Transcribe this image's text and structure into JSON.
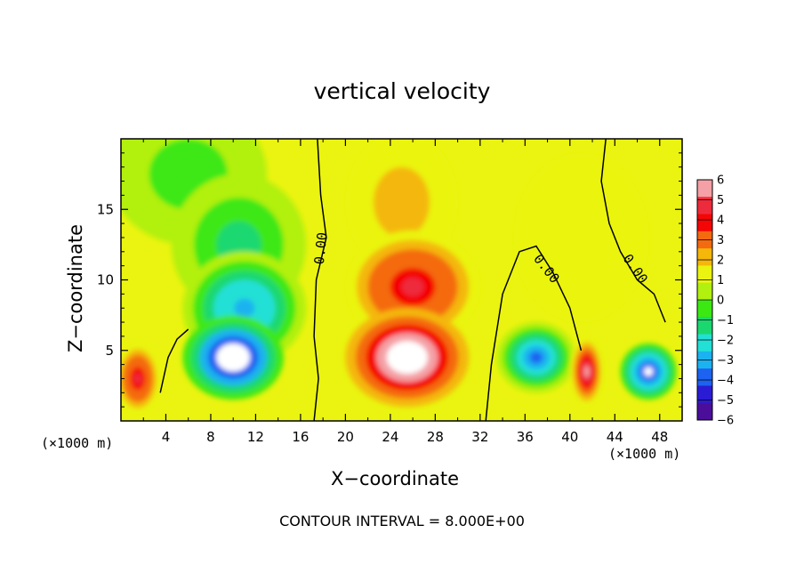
{
  "chart_data": {
    "type": "heatmap",
    "title": "vertical velocity",
    "xlabel": "X−coordinate",
    "ylabel": "Z−coordinate",
    "x_unit_label": "(×1000 m)",
    "xlim": [
      0,
      50
    ],
    "ylim": [
      0,
      20
    ],
    "x_ticks": [
      4,
      8,
      12,
      16,
      20,
      24,
      28,
      32,
      36,
      40,
      44,
      48
    ],
    "y_ticks": [
      5,
      10,
      15
    ],
    "colorbar": {
      "levels": [
        6,
        5,
        4,
        3,
        2,
        1,
        0,
        -1,
        -2,
        -3,
        -4,
        -5,
        -6
      ],
      "level_labels": [
        "6",
        "5",
        "4",
        "3",
        "2",
        "1",
        "0",
        "−1",
        "−2",
        "−3",
        "−4",
        "−5",
        "−6"
      ],
      "colors": [
        "#f4a0a6",
        "#ee2b3c",
        "#f40606",
        "#f46a10",
        "#f4b70a",
        "#eaf410",
        "#b2f010",
        "#3ce812",
        "#1ad86f",
        "#22e0d6",
        "#1bb2f0",
        "#1d62f0",
        "#2a1cd4",
        "#4b0e9a"
      ]
    },
    "contour_labels": [
      {
        "text": "0.00",
        "x": 18.2,
        "z": 12.2,
        "angle": -84
      },
      {
        "text": "0.00",
        "x": 37.6,
        "z": 10.6,
        "angle": 52
      },
      {
        "text": "0.00",
        "x": 45.5,
        "z": 10.6,
        "angle": 55
      }
    ],
    "regions": [
      {
        "x": 6.0,
        "z": 17.5,
        "rx": 7,
        "rz": 5,
        "w": -1.5
      },
      {
        "x": 10.5,
        "z": 12.5,
        "rx": 6,
        "rz": 5,
        "w": -2.5
      },
      {
        "x": 11.0,
        "z": 8.0,
        "rx": 5.5,
        "rz": 4,
        "w": -4.5
      },
      {
        "x": 10.0,
        "z": 4.5,
        "rx": 4.5,
        "rz": 3,
        "w": -8
      },
      {
        "x": 25.0,
        "z": 15.5,
        "rx": 5,
        "rz": 5,
        "w": 2.0
      },
      {
        "x": 26.0,
        "z": 9.5,
        "rx": 6,
        "rz": 4,
        "w": 4.5
      },
      {
        "x": 25.5,
        "z": 4.5,
        "rx": 5.5,
        "rz": 3.5,
        "w": 8
      },
      {
        "x": 37.0,
        "z": 4.5,
        "rx": 3.5,
        "rz": 2.5,
        "w": -5.5
      },
      {
        "x": 41.5,
        "z": 3.5,
        "rx": 1.5,
        "rz": 2.5,
        "w": 5.5
      },
      {
        "x": 47.0,
        "z": 3.5,
        "rx": 2.5,
        "rz": 2,
        "w": -6.5
      },
      {
        "x": 1.5,
        "z": 3.0,
        "rx": 2.0,
        "rz": 2.5,
        "w": 4.5
      },
      {
        "x": 41.0,
        "z": 13.0,
        "rx": 6,
        "rz": 6,
        "w": 0.8
      }
    ],
    "contour_interval_text": "CONTOUR INTERVAL = 8.000E+00"
  }
}
